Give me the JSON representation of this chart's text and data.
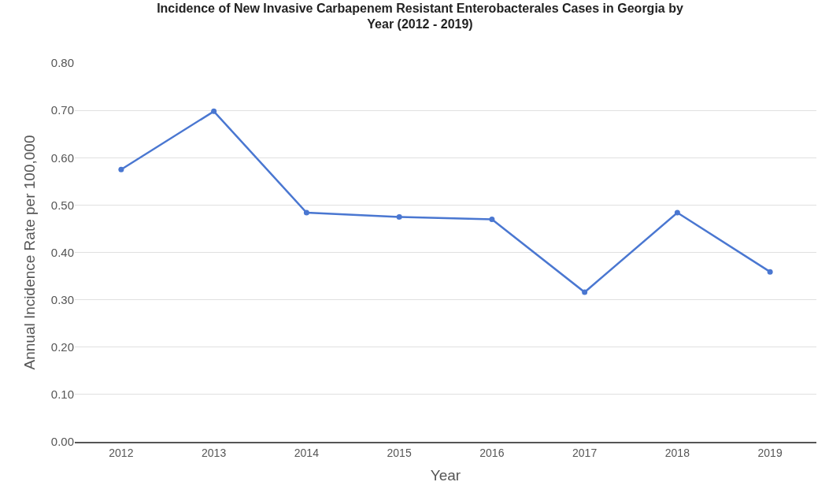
{
  "chart_data": {
    "type": "line",
    "title": "Incidence of New Invasive Carbapenem Resistant Enterobacterales Cases in Georgia by Year (2012 - 2019)",
    "xlabel": "Year",
    "ylabel": "Annual Incidence Rate per 100,000",
    "categories": [
      "2012",
      "2013",
      "2014",
      "2015",
      "2016",
      "2017",
      "2018",
      "2019"
    ],
    "series": [
      {
        "color": "#4a77d1",
        "values": [
          0.575,
          0.698,
          0.484,
          0.475,
          0.47,
          0.316,
          0.484,
          0.359
        ]
      }
    ],
    "ylim": [
      0,
      0.8
    ],
    "yticks": [
      {
        "value": 0,
        "label": "0.00"
      },
      {
        "value": 0.1,
        "label": "0.10"
      },
      {
        "value": 0.2,
        "label": "0.20"
      },
      {
        "value": 0.3,
        "label": "0.30"
      },
      {
        "value": 0.4,
        "label": "0.40"
      },
      {
        "value": 0.5,
        "label": "0.50"
      },
      {
        "value": 0.6,
        "label": "0.60"
      },
      {
        "value": 0.7,
        "label": "0.70"
      },
      {
        "value": 0.8,
        "label": "0.80"
      }
    ],
    "grid": "y",
    "marker": "circle",
    "line_style": "solid"
  }
}
